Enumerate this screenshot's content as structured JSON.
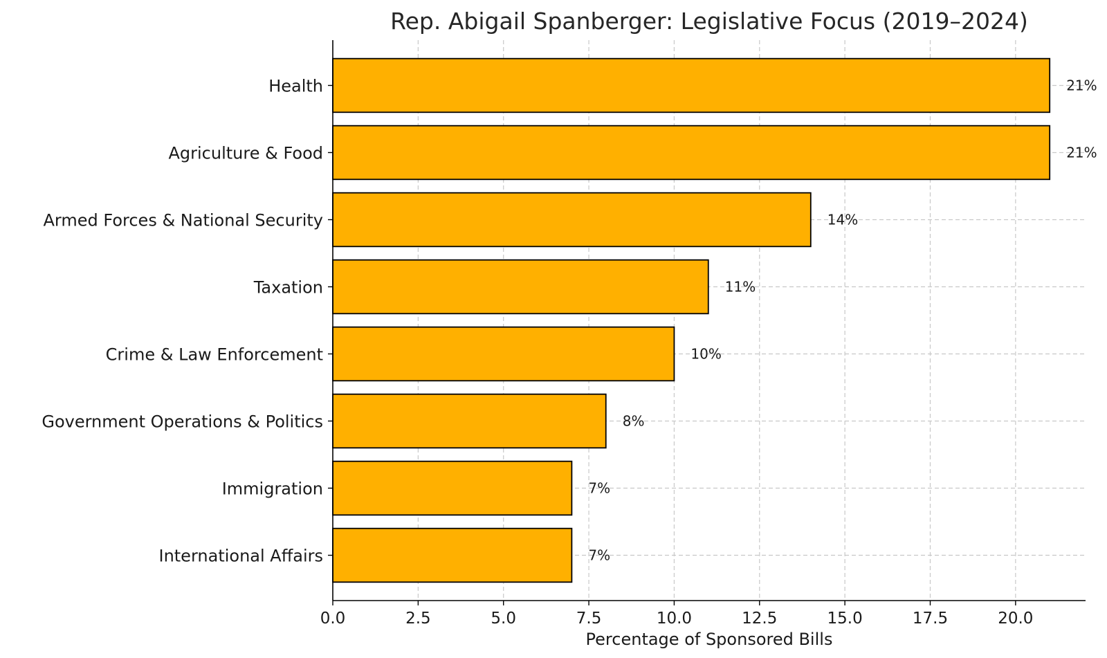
{
  "chart_data": {
    "type": "bar",
    "orientation": "horizontal",
    "title": "Rep. Abigail Spanberger: Legislative Focus (2019–2024)",
    "xlabel": "Percentage of Sponsored Bills",
    "ylabel": "",
    "categories": [
      "Health",
      "Agriculture & Food",
      "Armed Forces & National Security",
      "Taxation",
      "Crime & Law Enforcement",
      "Government Operations & Politics",
      "Immigration",
      "International Affairs"
    ],
    "values": [
      21,
      21,
      14,
      11,
      10,
      8,
      7,
      7
    ],
    "data_labels": [
      "21%",
      "21%",
      "14%",
      "11%",
      "10%",
      "8%",
      "7%",
      "7%"
    ],
    "xlim": [
      0,
      22.05
    ],
    "x_ticks": [
      0,
      2.5,
      5,
      7.5,
      10,
      12.5,
      15,
      17.5,
      20
    ],
    "x_tick_labels": [
      "0.0",
      "2.5",
      "5.0",
      "7.5",
      "10.0",
      "12.5",
      "15.0",
      "17.5",
      "20.0"
    ],
    "grid": true,
    "bar_color": "#FFB000",
    "edge_color": "#000000"
  }
}
